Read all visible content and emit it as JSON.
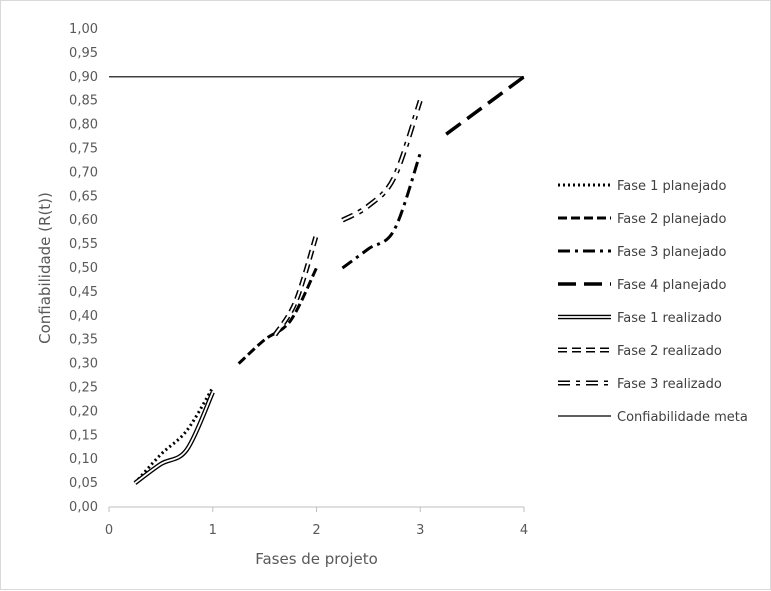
{
  "chart_data": {
    "type": "line",
    "xlabel": "Fases de projeto",
    "ylabel": "Confiabilidade (R(t))",
    "xlim": [
      0,
      4
    ],
    "ylim": [
      0,
      1.0
    ],
    "x_ticks": [
      "0",
      "1",
      "2",
      "3",
      "4"
    ],
    "y_ticks": [
      "0,00",
      "0,05",
      "0,10",
      "0,15",
      "0,20",
      "0,25",
      "0,30",
      "0,35",
      "0,40",
      "0,45",
      "0,50",
      "0,55",
      "0,60",
      "0,65",
      "0,70",
      "0,75",
      "0,80",
      "0,85",
      "0,90",
      "0,95",
      "1,00"
    ],
    "grid": false,
    "legend_position": "right",
    "series": [
      {
        "name": "Fase 1 planejado",
        "style": "dotted",
        "color": "#000000",
        "points": [
          [
            0.25,
            0.05
          ],
          [
            0.5,
            0.11
          ],
          [
            0.75,
            0.16
          ],
          [
            1.0,
            0.25
          ]
        ]
      },
      {
        "name": "Fase 2 planejado",
        "style": "dashed",
        "color": "#000000",
        "points": [
          [
            1.25,
            0.3
          ],
          [
            1.5,
            0.35
          ],
          [
            1.75,
            0.39
          ],
          [
            2.0,
            0.5
          ]
        ]
      },
      {
        "name": "Fase 3 planejado",
        "style": "dashdot",
        "color": "#000000",
        "points": [
          [
            2.25,
            0.5
          ],
          [
            2.5,
            0.54
          ],
          [
            2.75,
            0.58
          ],
          [
            3.0,
            0.74
          ]
        ]
      },
      {
        "name": "Fase 4 planejado",
        "style": "longdash",
        "color": "#000000",
        "points": [
          [
            3.25,
            0.78
          ],
          [
            3.5,
            0.82
          ],
          [
            3.75,
            0.86
          ],
          [
            4.0,
            0.9
          ]
        ]
      },
      {
        "name": "Fase 1 realizado",
        "style": "double-solid",
        "color": "#000000",
        "points": [
          [
            0.25,
            0.05
          ],
          [
            0.5,
            0.09
          ],
          [
            0.75,
            0.12
          ],
          [
            1.0,
            0.24
          ]
        ]
      },
      {
        "name": "Fase 2 realizado",
        "style": "double-dashed",
        "color": "#000000",
        "points": [
          [
            1.6,
            0.36
          ],
          [
            1.8,
            0.43
          ],
          [
            2.0,
            0.57
          ]
        ]
      },
      {
        "name": "Fase 3 realizado",
        "style": "double-dashdot",
        "color": "#000000",
        "points": [
          [
            2.25,
            0.6
          ],
          [
            2.5,
            0.63
          ],
          [
            2.75,
            0.69
          ],
          [
            3.0,
            0.85
          ]
        ]
      },
      {
        "name": "Confiabilidade meta",
        "style": "thin-solid",
        "color": "#000000",
        "points": [
          [
            0,
            0.9
          ],
          [
            4,
            0.9
          ]
        ]
      }
    ]
  }
}
